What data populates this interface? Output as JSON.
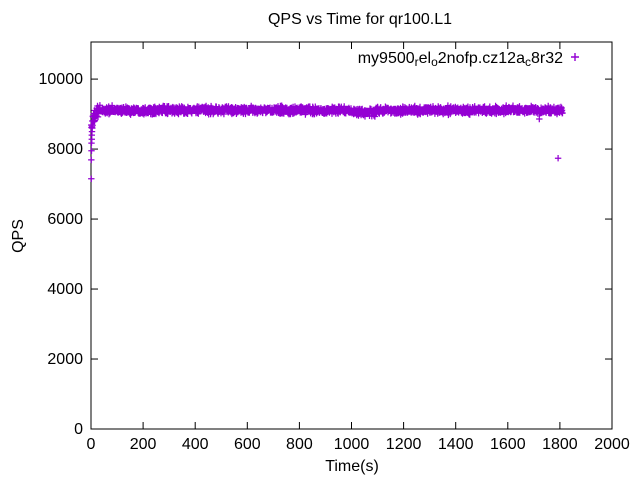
{
  "window": {
    "background": "#ffffff"
  },
  "chart_data": {
    "type": "scatter",
    "title": "QPS vs Time for qr100.L1",
    "xlabel": "Time(s)",
    "ylabel": "QPS",
    "xlim": [
      0,
      2000
    ],
    "ylim": [
      0,
      11060
    ],
    "grid": false,
    "border_color": "#000000",
    "xticks": [
      0,
      200,
      400,
      600,
      800,
      1000,
      1200,
      1400,
      1600,
      1800,
      2000
    ],
    "yticks": [
      0,
      2000,
      4000,
      6000,
      8000,
      10000
    ],
    "legend": {
      "position": "top-right-inside",
      "marker": "plus",
      "label_raw": "my9500_rel_o2nofp.cz12a_c8r32",
      "segments": [
        {
          "text": "my9500",
          "sub": false
        },
        {
          "text": "r",
          "sub": true
        },
        {
          "text": "el",
          "sub": false
        },
        {
          "text": "o",
          "sub": true
        },
        {
          "text": "2nofp.cz12a",
          "sub": false
        },
        {
          "text": "c",
          "sub": true
        },
        {
          "text": "8r32",
          "sub": false
        }
      ]
    },
    "series": [
      {
        "name": "my9500_rel_o2nofp.cz12a_c8r32",
        "marker": "plus",
        "color": "#9400D3",
        "band": {
          "description": "dense steady-state band of 1-second QPS samples",
          "t_start": 1,
          "t_end": 1810,
          "step": 1,
          "mean": 9110,
          "jitter": 78,
          "extra_early_jitter_factor": 1.7,
          "ramp": {
            "t_end": 38,
            "drop": 480
          },
          "dip": {
            "start": 1000,
            "end": 1090,
            "delta": -60
          },
          "seed": 1234,
          "approx_band_min": 8890,
          "approx_band_max": 9320
        },
        "outliers": [
          [
            1,
            7150
          ],
          [
            1,
            7690
          ],
          [
            2,
            7950
          ],
          [
            2,
            8170
          ],
          [
            3,
            8280
          ],
          [
            3,
            8400
          ],
          [
            4,
            8500
          ],
          [
            5,
            8600
          ],
          [
            1721,
            8860
          ],
          [
            1793,
            7740
          ]
        ]
      }
    ]
  }
}
